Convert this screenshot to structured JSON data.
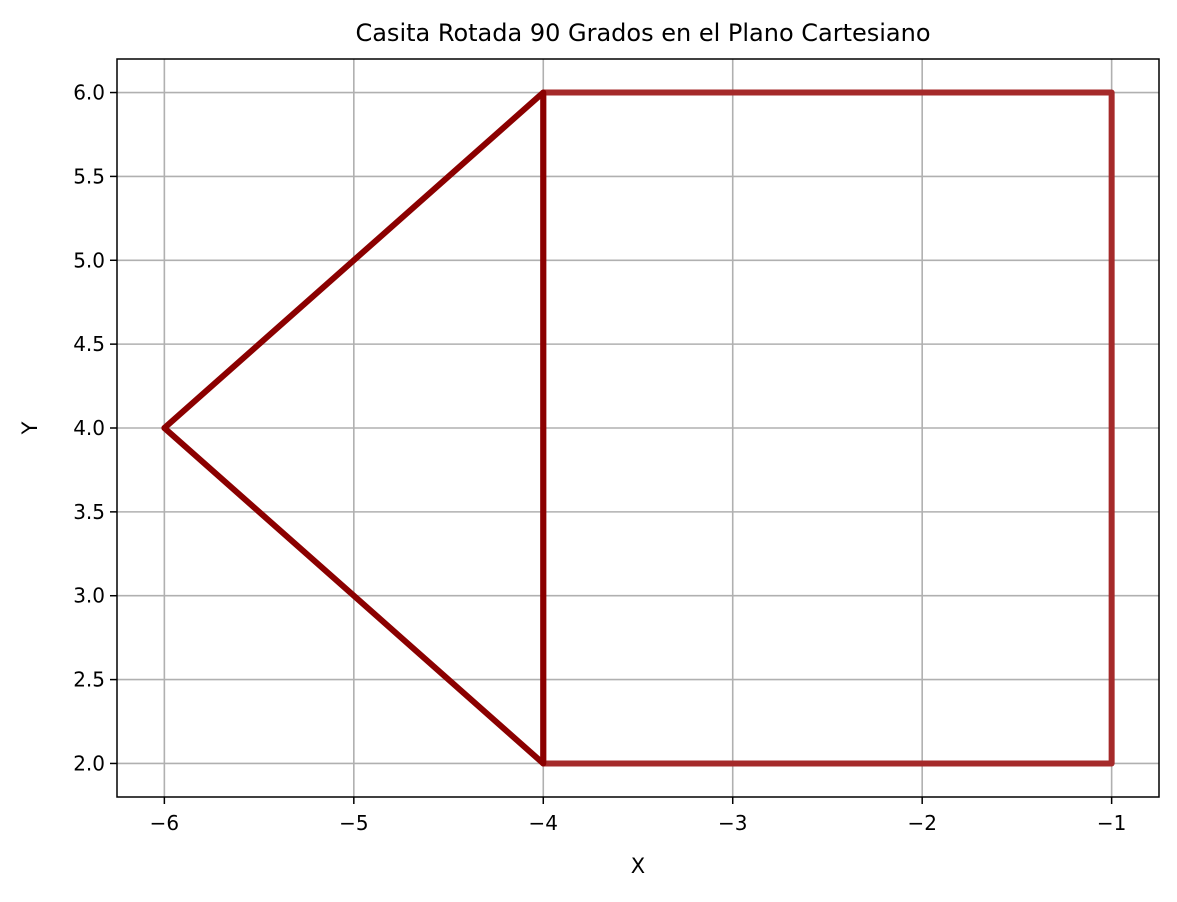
{
  "chart_data": {
    "type": "line",
    "title": "Casita Rotada 90 Grados en el Plano Cartesiano",
    "xlabel": "X",
    "ylabel": "Y",
    "xlim": [
      -6.25,
      -0.75
    ],
    "ylim": [
      1.8,
      6.2
    ],
    "x_ticks": [
      -6,
      -5,
      -4,
      -3,
      -2,
      -1
    ],
    "x_tick_labels": [
      "−6",
      "−5",
      "−4",
      "−3",
      "−2",
      "−1"
    ],
    "y_ticks": [
      2.0,
      2.5,
      3.0,
      3.5,
      4.0,
      4.5,
      5.0,
      5.5,
      6.0
    ],
    "y_tick_labels": [
      "2.0",
      "2.5",
      "3.0",
      "3.5",
      "4.0",
      "4.5",
      "5.0",
      "5.5",
      "6.0"
    ],
    "grid": true,
    "series": [
      {
        "color": "#a52a2a",
        "points": [
          {
            "x": -4,
            "y": 2
          },
          {
            "x": -1,
            "y": 2
          },
          {
            "x": -1,
            "y": 6
          },
          {
            "x": -4,
            "y": 6
          },
          {
            "x": -4,
            "y": 2
          }
        ]
      },
      {
        "color": "#8b0000",
        "points": [
          {
            "x": -4,
            "y": 2
          },
          {
            "x": -6,
            "y": 4
          },
          {
            "x": -4,
            "y": 6
          },
          {
            "x": -4,
            "y": 2
          }
        ]
      }
    ]
  }
}
